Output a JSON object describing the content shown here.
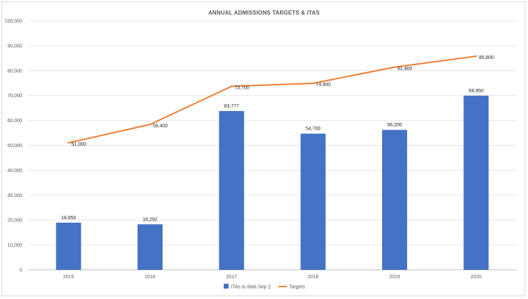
{
  "chart_data": {
    "type": "bar",
    "title": "ANNUAL ADMISSIONS TARGETS & ITAS",
    "categories": [
      "2015",
      "2016",
      "2017",
      "2018",
      "2019",
      "2020"
    ],
    "series": [
      {
        "name": "ITAs to date Sep 2",
        "type": "bar",
        "color": "#4472c4",
        "values": [
          18950,
          18292,
          63777,
          54700,
          56200,
          69950
        ],
        "labels": [
          "18,950",
          "18,292",
          "63,777",
          "54,700",
          "56,200",
          "69,950"
        ]
      },
      {
        "name": "Targets",
        "type": "line",
        "color": "#ed7d31",
        "values": [
          51000,
          58400,
          73700,
          74900,
          81400,
          85800
        ],
        "labels": [
          "51,000",
          "58,400",
          "73,700",
          "74,900",
          "81,400",
          "85,800"
        ]
      }
    ],
    "ylim": [
      0,
      100000
    ],
    "yticks": [
      "0",
      "10,000",
      "20,000",
      "30,000",
      "40,000",
      "50,000",
      "60,000",
      "70,000",
      "80,000",
      "90,000",
      "100,000"
    ],
    "grid": true,
    "legend_position": "bottom",
    "xlabel": "",
    "ylabel": ""
  }
}
